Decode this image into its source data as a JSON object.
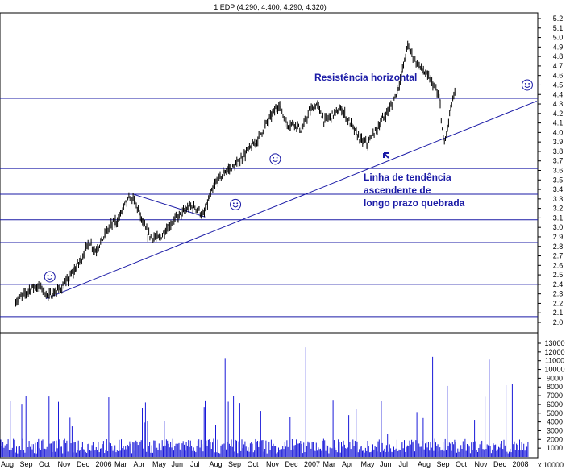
{
  "chart_data": {
    "type": "bar",
    "title": "1 EDP (4.290, 4.400, 4.290, 4.320)",
    "price_axis": {
      "ylim": [
        2.0,
        5.2
      ],
      "ticks": [
        "5.2",
        "5.1",
        "5.0",
        "4.9",
        "4.8",
        "4.7",
        "4.6",
        "4.5",
        "4.4",
        "4.3",
        "4.2",
        "4.1",
        "4.0",
        "3.9",
        "3.8",
        "3.7",
        "3.6",
        "3.5",
        "3.4",
        "3.3",
        "3.2",
        "3.1",
        "3.0",
        "2.9",
        "2.8",
        "2.7",
        "2.6",
        "2.5",
        "2.4",
        "2.3",
        "2.2",
        "2.1",
        "2.0"
      ]
    },
    "volume_axis": {
      "ylim": [
        0,
        13000
      ],
      "ticks": [
        "13000",
        "12000",
        "11000",
        "10000",
        "9000",
        "8000",
        "7000",
        "6000",
        "5000",
        "4000",
        "3000",
        "2000",
        "1000"
      ],
      "unit_label": "x 10000"
    },
    "months": [
      "Aug",
      "Sep",
      "Oct",
      "Nov",
      "Dec",
      "2006",
      "Mar",
      "Apr",
      "May",
      "Jun",
      "Jul",
      "Aug",
      "Sep",
      "Oct",
      "Nov",
      "Dec",
      "2007",
      "Mar",
      "Apr",
      "May",
      "Jun",
      "Jul",
      "Aug",
      "Sep",
      "Oct",
      "Nov",
      "Dec",
      "2008"
    ],
    "horizontal_levels": [
      4.36,
      3.62,
      3.35,
      3.08,
      2.84,
      2.4,
      2.06
    ],
    "trendline": {
      "from": {
        "month_index": 1.3,
        "price": 2.25
      },
      "to": {
        "month_index": 27.2,
        "price": 4.33
      }
    },
    "triangle_line": {
      "from": {
        "month_index": 5.9,
        "price": 3.35
      },
      "to": {
        "month_index": 9.7,
        "price": 3.11
      }
    },
    "series": [
      {
        "name": "price",
        "anchors": [
          [
            -0.3,
            2.22
          ],
          [
            0.2,
            2.3
          ],
          [
            0.5,
            2.36
          ],
          [
            0.7,
            2.38
          ],
          [
            1.1,
            2.36
          ],
          [
            1.4,
            2.27
          ],
          [
            1.8,
            2.32
          ],
          [
            2.3,
            2.4
          ],
          [
            2.8,
            2.55
          ],
          [
            3.2,
            2.68
          ],
          [
            3.6,
            2.85
          ],
          [
            3.9,
            2.75
          ],
          [
            4.3,
            2.88
          ],
          [
            4.7,
            3.02
          ],
          [
            5.1,
            3.08
          ],
          [
            5.5,
            3.25
          ],
          [
            5.8,
            3.33
          ],
          [
            6.1,
            3.22
          ],
          [
            6.4,
            3.05
          ],
          [
            6.7,
            2.92
          ],
          [
            7.0,
            2.9
          ],
          [
            7.3,
            2.88
          ],
          [
            7.7,
            3.0
          ],
          [
            8.1,
            3.08
          ],
          [
            8.5,
            3.15
          ],
          [
            8.9,
            3.22
          ],
          [
            9.3,
            3.2
          ],
          [
            9.6,
            3.12
          ],
          [
            9.9,
            3.3
          ],
          [
            10.3,
            3.48
          ],
          [
            10.8,
            3.6
          ],
          [
            11.3,
            3.65
          ],
          [
            11.7,
            3.75
          ],
          [
            12.0,
            3.82
          ],
          [
            12.4,
            3.9
          ],
          [
            12.8,
            4.05
          ],
          [
            13.2,
            4.18
          ],
          [
            13.6,
            4.3
          ],
          [
            14.0,
            4.08
          ],
          [
            14.4,
            4.1
          ],
          [
            14.8,
            4.02
          ],
          [
            15.2,
            4.22
          ],
          [
            15.6,
            4.3
          ],
          [
            16.0,
            4.12
          ],
          [
            16.4,
            4.18
          ],
          [
            16.9,
            4.25
          ],
          [
            17.4,
            4.08
          ],
          [
            17.9,
            3.92
          ],
          [
            18.3,
            3.88
          ],
          [
            18.7,
            4.02
          ],
          [
            19.1,
            4.15
          ],
          [
            19.6,
            4.3
          ],
          [
            20.0,
            4.55
          ],
          [
            20.4,
            4.92
          ],
          [
            20.8,
            4.75
          ],
          [
            21.2,
            4.65
          ],
          [
            21.6,
            4.55
          ],
          [
            21.9,
            4.45
          ],
          [
            22.1,
            4.3
          ],
          [
            22.3,
            3.85
          ],
          [
            22.5,
            4.05
          ],
          [
            22.7,
            4.3
          ],
          [
            22.9,
            4.42
          ]
        ]
      }
    ],
    "annotations": [
      "Resistência horizontal",
      "Linha de tendência",
      "ascendente de",
      "longo prazo quebrada"
    ]
  }
}
